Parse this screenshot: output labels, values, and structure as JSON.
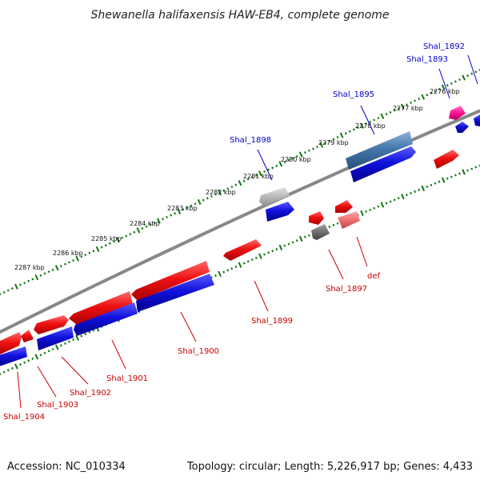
{
  "title": "Shewanella halifaxensis HAW-EB4, complete genome",
  "footer": {
    "accession": "Accession: NC_010334",
    "topology": "Topology: circular; Length: 5,226,917 bp; Genes: 4,433"
  },
  "tick_labels": [
    "2276 kbp",
    "2277 kbp",
    "2278 kbp",
    "2279 kbp",
    "2280 kbp",
    "2281 kbp",
    "2282 kbp",
    "2283 kbp",
    "2284 kbp",
    "2285 kbp",
    "2286 kbp",
    "2287 kbp"
  ],
  "gene_labels": {
    "blue": [
      "Shal_1892",
      "Shal_1893",
      "Shal_1895",
      "Shal_1898"
    ],
    "red": [
      "def",
      "Shal_1897",
      "Shal_1899",
      "Shal_1900",
      "Shal_1901",
      "Shal_1902",
      "Shal_1903",
      "Shal_1904"
    ]
  },
  "colors": {
    "backbone": "#888888",
    "tick_mark": "#117711",
    "forward_strand_cds": "#ee1111",
    "reverse_strand_cds": "#1111dd",
    "reverse_strand_rna": "#4477aa",
    "forward_strand_other": "#f07070",
    "forward_strand_pseudo": "#707070",
    "reverse_strand_pseudo": "#b0b0b0",
    "highlight": "#ff1493",
    "label_blue": "#0000cc",
    "label_red": "#cc0000"
  }
}
